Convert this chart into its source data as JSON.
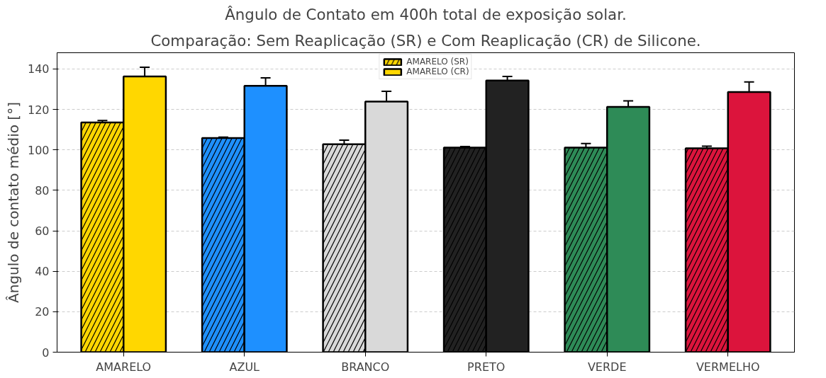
{
  "chart_data": {
    "type": "bar",
    "title": "Ângulo de Contato em 400h total de exposição solar.",
    "subtitle": "Comparação: Sem Reaplicação (SR) e Com Reaplicação (CR) de Silicone.",
    "ylabel": "Ângulo de contato médio [°]",
    "categories": [
      "AMARELO",
      "AZUL",
      "BRANCO",
      "PRETO",
      "VERDE",
      "VERMELHO"
    ],
    "series": [
      {
        "name": "AMARELO (SR)",
        "colors": [
          "#ffd700",
          "#1e90ff",
          "#d9d9d9",
          "#222222",
          "#2e8b57",
          "#dc143c"
        ],
        "values": [
          113.5,
          105.8,
          102.8,
          101.1,
          101.1,
          100.8
        ],
        "errors": [
          1,
          0.5,
          2,
          0.5,
          2,
          1
        ]
      },
      {
        "name": "AMARELO (CR)",
        "colors": [
          "#ffd700",
          "#1e90ff",
          "#d9d9d9",
          "#222222",
          "#2e8b57",
          "#dc143c"
        ],
        "values": [
          136.3,
          131.6,
          123.9,
          134.3,
          121.2,
          128.6
        ],
        "errors": [
          4.5,
          4,
          5,
          2,
          3,
          5
        ]
      }
    ],
    "ylim": [
      0,
      148
    ],
    "yticks": [
      0,
      20,
      40,
      60,
      80,
      100,
      120,
      140
    ],
    "grid": "y",
    "legend": "top"
  }
}
